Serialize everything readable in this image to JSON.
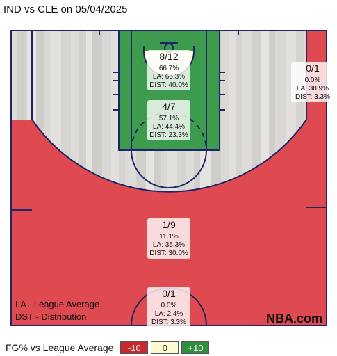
{
  "header": {
    "title": "IND vs CLE on 05/04/2025"
  },
  "notes": {
    "la": "LA - League Average",
    "dst": "DST - Distribution"
  },
  "brand": "NBA.com",
  "legend": {
    "title": "FG% vs League Average",
    "neg": "-10",
    "zero": "0",
    "pos": "+10"
  },
  "colors": {
    "above_average": "#3c9b4c",
    "below_average": "#df4a50",
    "neutral": "#fffbd6",
    "court_lines": "#1e2466"
  },
  "chart_data": {
    "type": "shot-zone heatmap",
    "zones": [
      {
        "zone": "Restricted Area",
        "made_attempted": "8/12",
        "fg_pct": "66.7%",
        "league_avg": "LA: 66.3%",
        "distribution": "DIST: 40.0%",
        "fg_pct_value": 66.7,
        "league_avg_value": 66.3,
        "distribution_value": 40.0
      },
      {
        "zone": "In The Paint (Non-RA)",
        "made_attempted": "4/7",
        "fg_pct": "57.1%",
        "league_avg": "LA: 44.4%",
        "distribution": "DIST: 23.3%",
        "fg_pct_value": 57.1,
        "league_avg_value": 44.4,
        "distribution_value": 23.3
      },
      {
        "zone": "Right Corner 3",
        "made_attempted": "0/1",
        "fg_pct": "0.0%",
        "league_avg": "LA: 38.9%",
        "distribution": "DIST: 3.3%",
        "fg_pct_value": 0.0,
        "league_avg_value": 38.9,
        "distribution_value": 3.3
      },
      {
        "zone": "Above the Break 3",
        "made_attempted": "1/9",
        "fg_pct": "11.1%",
        "league_avg": "LA: 35.3%",
        "distribution": "DIST: 30.0%",
        "fg_pct_value": 11.1,
        "league_avg_value": 35.3,
        "distribution_value": 30.0
      },
      {
        "zone": "Backcourt",
        "made_attempted": "0/1",
        "fg_pct": "0.0%",
        "league_avg": "LA: 2.4%",
        "distribution": "DIST: 3.3%",
        "fg_pct_value": 0.0,
        "league_avg_value": 2.4,
        "distribution_value": 3.3
      }
    ]
  }
}
